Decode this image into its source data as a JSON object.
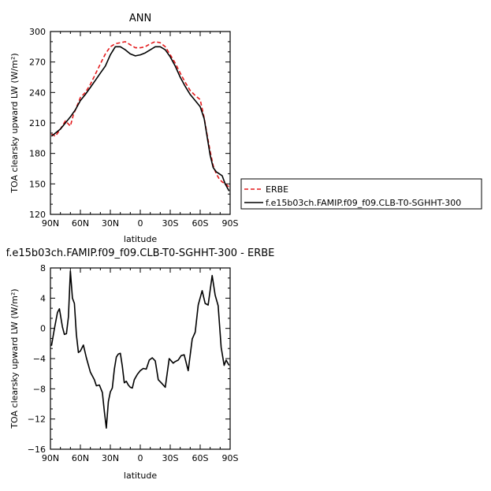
{
  "chart_data": [
    {
      "type": "line",
      "title": "ANN",
      "xlabel": "latitude",
      "ylabel": "TOA clearsky upward LW (W/m²)",
      "xlim": [
        90,
        -90
      ],
      "ylim": [
        120,
        300
      ],
      "xticks": [
        90,
        60,
        30,
        0,
        -30,
        -60,
        -90
      ],
      "xticklabels": [
        "90N",
        "60N",
        "30N",
        "0",
        "30S",
        "60S",
        "90S"
      ],
      "yticks": [
        120,
        150,
        180,
        210,
        240,
        270,
        300
      ],
      "yticklabels": [
        "120",
        "150",
        "180",
        "210",
        "240",
        "270",
        "300"
      ],
      "legend": "right",
      "series": [
        {
          "name": "ERBE",
          "color": "#e41a1c",
          "dash": "dashed",
          "x": [
            89,
            85,
            80,
            75,
            70,
            67,
            60,
            55,
            50,
            45,
            40,
            35,
            30,
            25,
            20,
            15,
            10,
            5,
            0,
            -5,
            -10,
            -15,
            -20,
            -25,
            -30,
            -35,
            -40,
            -45,
            -50,
            -55,
            -60,
            -64,
            -67,
            -70,
            -73,
            -76,
            -79,
            -82,
            -85,
            -89
          ],
          "y": [
            199,
            197,
            204,
            212,
            207,
            218,
            235,
            240,
            248,
            258,
            268,
            278,
            285,
            288,
            289,
            290,
            287,
            284,
            284,
            285,
            288,
            290,
            289,
            285,
            277,
            269,
            259,
            250,
            242,
            237,
            233,
            215,
            198,
            182,
            168,
            160,
            155,
            152,
            150,
            147
          ]
        },
        {
          "name": "f.e15b03ch.FAMIP.f09_f09.CLB-T0-SGHHT-300",
          "color": "#000000",
          "dash": "solid",
          "x": [
            89,
            85,
            80,
            75,
            70,
            65,
            60,
            55,
            50,
            45,
            40,
            35,
            30,
            25,
            20,
            15,
            10,
            5,
            0,
            -5,
            -10,
            -15,
            -20,
            -25,
            -30,
            -35,
            -40,
            -45,
            -50,
            -55,
            -60,
            -64,
            -67,
            -70,
            -73,
            -76,
            -79,
            -82,
            -85,
            -89
          ],
          "y": [
            197,
            200,
            204,
            210,
            216,
            223,
            232,
            238,
            245,
            252,
            259,
            266,
            277,
            285,
            285,
            282,
            278,
            276,
            277,
            279,
            282,
            285,
            285,
            282,
            275,
            266,
            255,
            246,
            238,
            232,
            226,
            214,
            196,
            178,
            166,
            162,
            160,
            158,
            150,
            143
          ]
        }
      ]
    },
    {
      "type": "line",
      "title": "f.e15b03ch.FAMIP.f09_f09.CLB-T0-SGHHT-300  -  ERBE",
      "xlabel": "latitude",
      "ylabel": "TOA clearsky upward LW (W/m²)",
      "xlim": [
        90,
        -90
      ],
      "ylim": [
        -16,
        8
      ],
      "xticks": [
        90,
        60,
        30,
        0,
        -30,
        -60,
        -90
      ],
      "xticklabels": [
        "90N",
        "60N",
        "30N",
        "0",
        "30S",
        "60S",
        "90S"
      ],
      "yticks": [
        -16,
        -12,
        -8,
        -4,
        0,
        4,
        8
      ],
      "yticklabels": [
        "−16",
        "−12",
        "−8",
        "−4",
        "0",
        "4",
        "8"
      ],
      "series": [
        {
          "color": "#000000",
          "dash": "solid",
          "x": [
            89,
            86,
            83,
            81,
            78,
            76,
            74,
            72,
            70,
            68,
            66,
            64,
            62,
            60,
            57,
            54,
            50,
            46,
            44,
            41,
            38,
            36,
            34,
            32,
            30,
            28,
            26,
            24,
            22,
            20,
            18,
            16,
            14,
            12,
            10,
            8,
            6,
            3,
            0,
            -3,
            -6,
            -9,
            -12,
            -15,
            -18,
            -21,
            -25,
            -29,
            -33,
            -35,
            -38,
            -41,
            -44,
            -48,
            -52,
            -55,
            -58,
            -62,
            -65,
            -68,
            -72,
            -75,
            -78,
            -81,
            -84,
            -86,
            -89
          ],
          "y": [
            -2.3,
            0,
            2.1,
            2.6,
            0.2,
            -0.8,
            -0.7,
            1.5,
            7.6,
            4,
            3.3,
            -0.8,
            -3.2,
            -3,
            -2.2,
            -3.9,
            -5.8,
            -6.8,
            -7.6,
            -7.5,
            -8.5,
            -11,
            -13.2,
            -9.7,
            -8.4,
            -7.9,
            -5.4,
            -3.8,
            -3.4,
            -3.3,
            -5,
            -7.2,
            -7,
            -7.5,
            -7.8,
            -7.9,
            -6.8,
            -6.1,
            -5.6,
            -5.3,
            -5.4,
            -4.2,
            -3.9,
            -4.3,
            -6.8,
            -7.2,
            -7.8,
            -4,
            -4.6,
            -4.4,
            -4.2,
            -3.6,
            -3.5,
            -5.6,
            -1.4,
            -0.5,
            3.1,
            5,
            3.3,
            3.1,
            7,
            4.4,
            3,
            -2.5,
            -4.9,
            -4.2,
            -4.9
          ]
        }
      ]
    }
  ]
}
